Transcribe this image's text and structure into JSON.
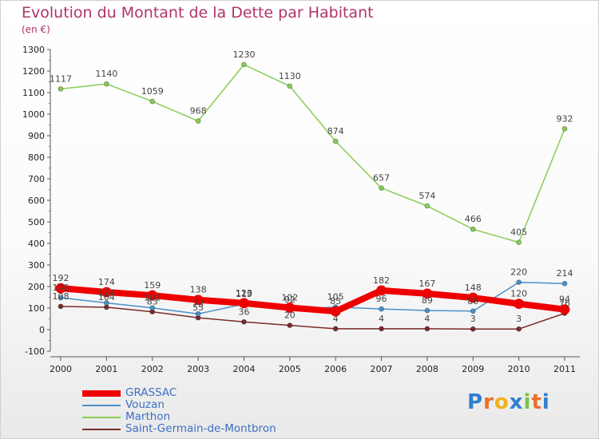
{
  "chart_data": {
    "type": "line",
    "title": "Evolution du Montant de la Dette par Habitant",
    "subtitle": "(en €)",
    "x": [
      "2000",
      "2001",
      "2002",
      "2003",
      "2004",
      "2005",
      "2006",
      "2007",
      "2008",
      "2009",
      "2010",
      "2011"
    ],
    "ylim": [
      -100,
      1300
    ],
    "yticks": [
      -100,
      0,
      100,
      200,
      300,
      400,
      500,
      600,
      700,
      800,
      900,
      1000,
      1100,
      1200,
      1300
    ],
    "grid": false,
    "legend_position": "bottom-left",
    "series": [
      {
        "name": "GRASSAC",
        "color": "#ee0000",
        "values": [
          192,
          174,
          159,
          138,
          123,
          102,
          85,
          182,
          167,
          148,
          120,
          94
        ],
        "labels": [
          "192",
          "174",
          "159",
          "138",
          "123",
          "102",
          "85",
          "182",
          "167",
          "148",
          "120",
          "94"
        ]
      },
      {
        "name": "Vouzan",
        "color": "#4a90c8",
        "values": [
          148,
          124,
          101,
          73,
          119,
          92,
          105,
          96,
          89,
          86,
          220,
          214
        ],
        "labels": [
          "148",
          "124",
          "101",
          "73",
          "119",
          "92",
          "105",
          "96",
          "89",
          "86",
          "220",
          "214"
        ]
      },
      {
        "name": "Marthon",
        "color": "#88cc55",
        "values": [
          1117,
          1140,
          1059,
          968,
          1230,
          1130,
          874,
          657,
          574,
          466,
          405,
          932
        ],
        "labels": [
          "1117",
          "1140",
          "1059",
          "968",
          "1230",
          "1130",
          "874",
          "657",
          "574",
          "466",
          "405",
          "932"
        ]
      },
      {
        "name": "Saint-Germain-de-Montbron",
        "color": "#7a2a2a",
        "values": [
          108,
          104,
          83,
          55,
          36,
          20,
          4,
          4,
          4,
          3,
          3,
          76
        ],
        "labels": [
          "108",
          "104",
          "83",
          "55",
          "36",
          "20",
          "4",
          "4",
          "4",
          "3",
          "3",
          "76"
        ]
      }
    ]
  },
  "legend": {
    "items": [
      {
        "label": "GRASSAC",
        "color": "#ee0000"
      },
      {
        "label": "Vouzan",
        "color": "#4a90c8"
      },
      {
        "label": "Marthon",
        "color": "#88cc55"
      },
      {
        "label": "Saint-Germain-de-Montbron",
        "color": "#7a2a2a"
      }
    ]
  },
  "brand": {
    "letters": [
      "P",
      "r",
      "o",
      "x",
      "i",
      "t",
      "i"
    ],
    "colors": [
      "#2f7fd0",
      "#e8702a",
      "#f0b21c",
      "#2f7fd0",
      "#7ac143",
      "#e8702a",
      "#2f7fd0"
    ]
  }
}
